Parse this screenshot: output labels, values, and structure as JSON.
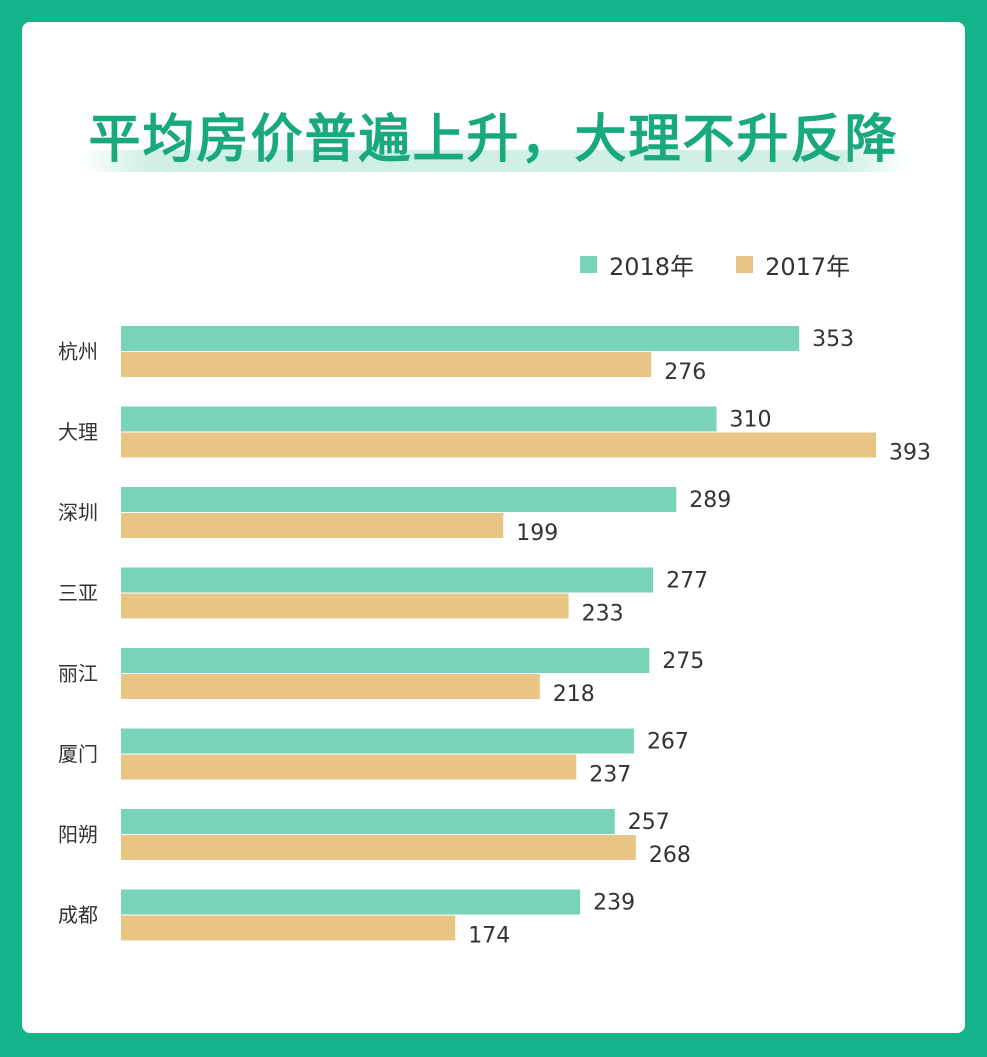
{
  "chart_data": {
    "type": "bar",
    "orientation": "horizontal",
    "title": "平均房价普遍上升，大理不升反降",
    "categories": [
      "杭州",
      "大理",
      "深圳",
      "三亚",
      "丽江",
      "厦门",
      "阳朔",
      "成都"
    ],
    "series": [
      {
        "name": "2018年",
        "color": "#78d3b8",
        "values": [
          353,
          310,
          289,
          277,
          275,
          267,
          257,
          239
        ]
      },
      {
        "name": "2017年",
        "color": "#e8c585",
        "values": [
          276,
          393,
          199,
          233,
          218,
          237,
          268,
          174
        ]
      }
    ],
    "xlim": [
      0,
      393
    ],
    "legend_position": "top-right",
    "grid": false
  },
  "colors": {
    "frame": "#15b38a",
    "title": "#18a97e"
  }
}
